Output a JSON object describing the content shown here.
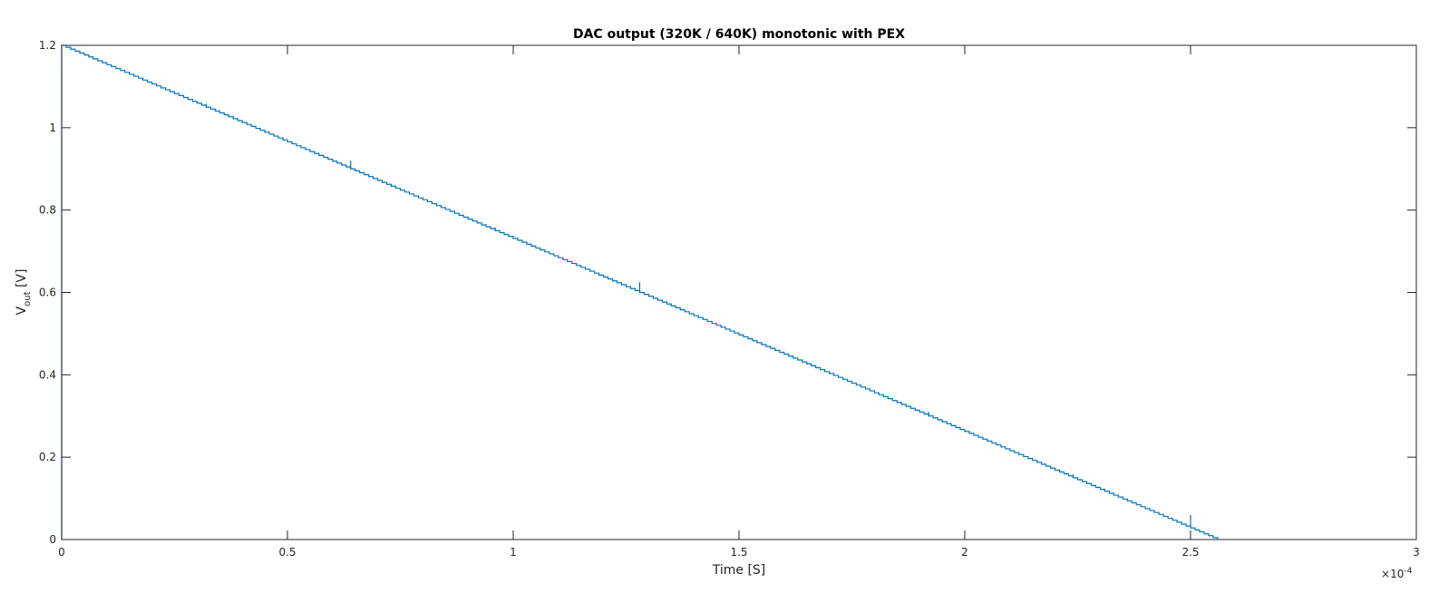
{
  "chart_data": {
    "type": "line",
    "title": "DAC output (320K / 640K) monotonic with PEX",
    "xlabel": "Time [S]",
    "ylabel": {
      "main": "V",
      "subscript": "out",
      "unit": " [V]"
    },
    "x_exponent": {
      "prefix": "×",
      "base": "10",
      "power": "-4"
    },
    "xlim": [
      0,
      3
    ],
    "ylim": [
      0,
      1.2
    ],
    "xticks": [
      0,
      0.5,
      1,
      1.5,
      2,
      2.5,
      3
    ],
    "xtick_labels": [
      "0",
      "0.5",
      "1",
      "1.5",
      "2",
      "2.5",
      "3"
    ],
    "yticks": [
      0,
      0.2,
      0.4,
      0.6,
      0.8,
      1,
      1.2
    ],
    "ytick_labels": [
      "0",
      "0.2",
      "0.4",
      "0.6",
      "0.8",
      "1",
      "1.2"
    ],
    "x_unit_scale": "1e-4",
    "grid": false,
    "box": true,
    "series": [
      {
        "color": "#0072bd",
        "x": [
          0,
          0,
          2.56
        ],
        "y": [
          0,
          1.2,
          0
        ]
      }
    ],
    "staircase": {
      "steps": 256,
      "x_start": 0,
      "x_end": 2.56,
      "y_start": 1.2,
      "y_end": 0
    },
    "glitches": [
      {
        "x": 0.32,
        "y": 1.05,
        "height": 0.008
      },
      {
        "x": 0.64,
        "y": 0.9,
        "height": 0.02
      },
      {
        "x": 0.96,
        "y": 0.75,
        "height": 0.008
      },
      {
        "x": 1.28,
        "y": 0.6,
        "height": 0.025
      },
      {
        "x": 1.92,
        "y": 0.3,
        "height": 0.01
      },
      {
        "x": 2.24,
        "y": 0.15,
        "height": 0.008
      },
      {
        "x": 2.5,
        "y": 0.03,
        "height": 0.03
      }
    ]
  }
}
